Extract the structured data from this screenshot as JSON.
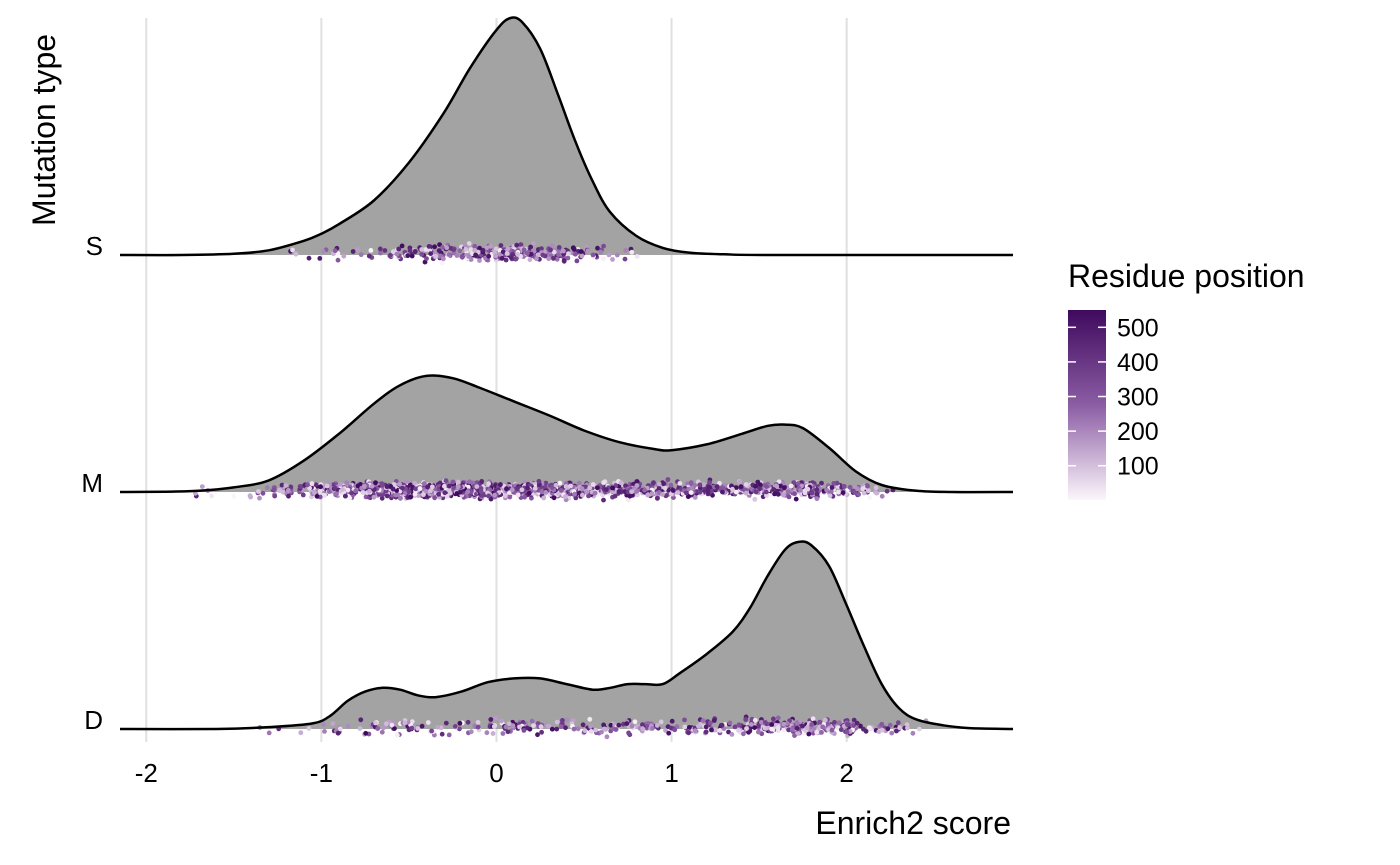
{
  "chart_data": {
    "type": "ridgeline",
    "xlabel": "Enrich2 score",
    "ylabel": "Mutation type",
    "xlim": [
      -2.15,
      2.95
    ],
    "x_ticks": [
      "-2",
      "-1",
      "0",
      "1",
      "2"
    ],
    "x_tick_values": [
      -2,
      -1,
      0,
      1,
      2
    ],
    "grid": "vertical",
    "fill_color": "#a3a3a3",
    "outline_color": "#000000",
    "legend": {
      "title": "Residue position",
      "placement": "right",
      "ticks": [
        "100",
        "200",
        "300",
        "400",
        "500"
      ],
      "tick_values": [
        100,
        200,
        300,
        400,
        500
      ],
      "range": [
        1,
        550
      ],
      "color_low": "#fcf6fb",
      "color_high": "#3f0a5e"
    },
    "series": [
      {
        "name": "S",
        "peak_ratio": 1.0,
        "curve": [
          [
            -2.15,
            0
          ],
          [
            -1.8,
            0.0
          ],
          [
            -1.5,
            0.005
          ],
          [
            -1.3,
            0.02
          ],
          [
            -1.1,
            0.06
          ],
          [
            -1.0,
            0.09
          ],
          [
            -0.9,
            0.13
          ],
          [
            -0.7,
            0.23
          ],
          [
            -0.5,
            0.39
          ],
          [
            -0.3,
            0.6
          ],
          [
            -0.15,
            0.79
          ],
          [
            0.0,
            0.95
          ],
          [
            0.08,
            1.0
          ],
          [
            0.15,
            0.98
          ],
          [
            0.25,
            0.87
          ],
          [
            0.35,
            0.68
          ],
          [
            0.45,
            0.48
          ],
          [
            0.55,
            0.31
          ],
          [
            0.65,
            0.18
          ],
          [
            0.8,
            0.08
          ],
          [
            0.95,
            0.03
          ],
          [
            1.1,
            0.01
          ],
          [
            1.3,
            0.003
          ],
          [
            1.6,
            0
          ],
          [
            2.95,
            0
          ]
        ],
        "points_range": [
          -1.3,
          0.82
        ],
        "points_count": 320
      },
      {
        "name": "M",
        "peak_ratio": 0.49,
        "curve": [
          [
            -2.15,
            0
          ],
          [
            -1.9,
            0.003
          ],
          [
            -1.7,
            0.01
          ],
          [
            -1.5,
            0.04
          ],
          [
            -1.3,
            0.1
          ],
          [
            -1.1,
            0.27
          ],
          [
            -0.9,
            0.5
          ],
          [
            -0.7,
            0.76
          ],
          [
            -0.55,
            0.92
          ],
          [
            -0.4,
            1.0
          ],
          [
            -0.25,
            0.98
          ],
          [
            -0.1,
            0.9
          ],
          [
            0.1,
            0.78
          ],
          [
            0.3,
            0.66
          ],
          [
            0.5,
            0.53
          ],
          [
            0.7,
            0.43
          ],
          [
            0.9,
            0.37
          ],
          [
            1.0,
            0.36
          ],
          [
            1.2,
            0.41
          ],
          [
            1.4,
            0.5
          ],
          [
            1.55,
            0.57
          ],
          [
            1.65,
            0.58
          ],
          [
            1.75,
            0.55
          ],
          [
            1.9,
            0.38
          ],
          [
            2.05,
            0.18
          ],
          [
            2.2,
            0.06
          ],
          [
            2.4,
            0.01
          ],
          [
            2.6,
            0.0
          ],
          [
            2.95,
            0
          ]
        ],
        "points_range": [
          -1.72,
          2.38
        ],
        "points_count": 1800
      },
      {
        "name": "D",
        "peak_ratio": 0.79,
        "curve": [
          [
            -2.15,
            0
          ],
          [
            -1.6,
            0.0
          ],
          [
            -1.3,
            0.01
          ],
          [
            -1.05,
            0.03
          ],
          [
            -0.95,
            0.07
          ],
          [
            -0.85,
            0.15
          ],
          [
            -0.75,
            0.2
          ],
          [
            -0.65,
            0.22
          ],
          [
            -0.55,
            0.21
          ],
          [
            -0.45,
            0.18
          ],
          [
            -0.35,
            0.17
          ],
          [
            -0.2,
            0.2
          ],
          [
            -0.05,
            0.25
          ],
          [
            0.1,
            0.27
          ],
          [
            0.25,
            0.27
          ],
          [
            0.4,
            0.24
          ],
          [
            0.55,
            0.21
          ],
          [
            0.65,
            0.22
          ],
          [
            0.75,
            0.24
          ],
          [
            0.85,
            0.24
          ],
          [
            0.95,
            0.24
          ],
          [
            1.05,
            0.3
          ],
          [
            1.2,
            0.4
          ],
          [
            1.35,
            0.52
          ],
          [
            1.45,
            0.65
          ],
          [
            1.55,
            0.82
          ],
          [
            1.65,
            0.96
          ],
          [
            1.73,
            1.0
          ],
          [
            1.8,
            0.98
          ],
          [
            1.9,
            0.87
          ],
          [
            2.0,
            0.66
          ],
          [
            2.1,
            0.44
          ],
          [
            2.2,
            0.24
          ],
          [
            2.3,
            0.11
          ],
          [
            2.4,
            0.05
          ],
          [
            2.55,
            0.02
          ],
          [
            2.7,
            0.005
          ],
          [
            2.95,
            0
          ]
        ],
        "points_range": [
          -1.42,
          2.55
        ],
        "points_count": 520
      }
    ]
  }
}
